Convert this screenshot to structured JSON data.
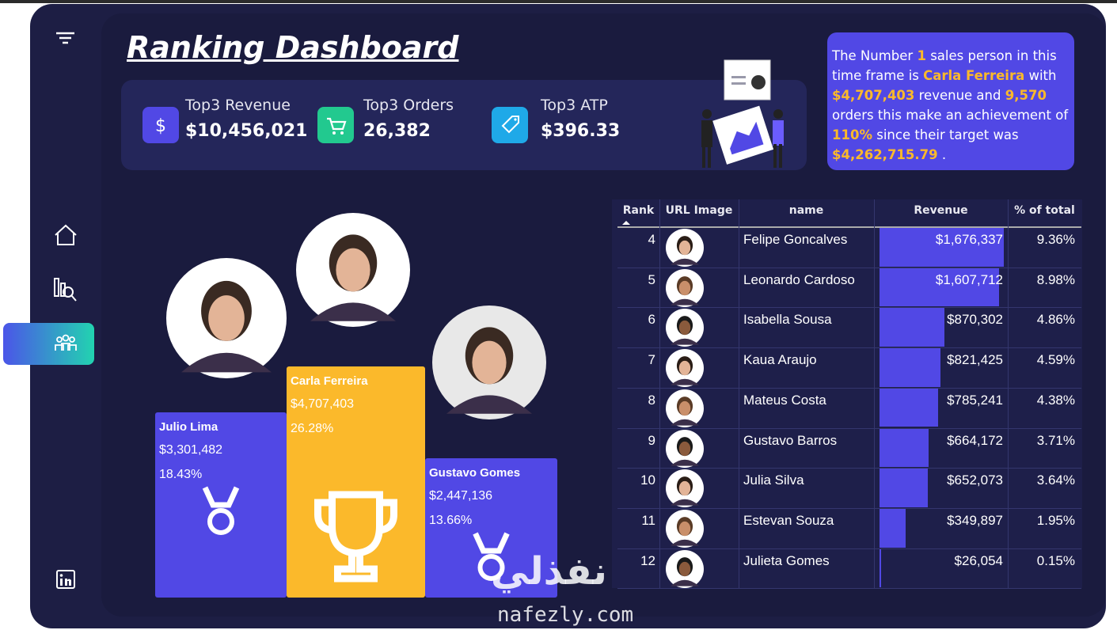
{
  "header": {
    "title": "Ranking Dashboard"
  },
  "kpis": [
    {
      "label": "Top3 Revenue",
      "value": "$10,456,021"
    },
    {
      "label": "Top3 Orders",
      "value": "26,382"
    },
    {
      "label": "Top3 ATP",
      "value": "$396.33"
    }
  ],
  "summary": [
    "The Number ",
    "1",
    " sales person in this time frame  is ",
    "Carla Ferreira",
    " with ",
    "$4,707,403",
    " revenue and ",
    "9,570",
    " orders this make an achievement of ",
    "110%",
    " since their target was ",
    "$4,262,715.79",
    " ."
  ],
  "podium": [
    {
      "name": "Julio Lima",
      "revenue": "$3,301,482",
      "share": "18.43%"
    },
    {
      "name": "Carla Ferreira",
      "revenue": "$4,707,403",
      "share": "26.28%"
    },
    {
      "name": "Gustavo Gomes",
      "revenue": "$2,447,136",
      "share": "13.66%"
    }
  ],
  "table": {
    "columns": [
      "Rank",
      "URL Image",
      "name",
      "Revenue",
      "% of total"
    ],
    "rows": [
      {
        "rank": 4,
        "name": "Felipe Goncalves",
        "revenue": {
          "value": 1676337,
          "label": "$1,676,337"
        },
        "share": "9.36%"
      },
      {
        "rank": 5,
        "name": "Leonardo Cardoso",
        "revenue": {
          "value": 1607712,
          "label": "$1,607,712"
        },
        "share": "8.98%"
      },
      {
        "rank": 6,
        "name": "Isabella Sousa",
        "revenue": {
          "value": 870302,
          "label": "$870,302"
        },
        "share": "4.86%"
      },
      {
        "rank": 7,
        "name": "Kaua Araujo",
        "revenue": {
          "value": 821425,
          "label": "$821,425"
        },
        "share": "4.59%"
      },
      {
        "rank": 8,
        "name": "Mateus Costa",
        "revenue": {
          "value": 785241,
          "label": "$785,241"
        },
        "share": "4.38%"
      },
      {
        "rank": 9,
        "name": "Gustavo Barros",
        "revenue": {
          "value": 664172,
          "label": "$664,172"
        },
        "share": "3.71%"
      },
      {
        "rank": 10,
        "name": "Julia Silva",
        "revenue": {
          "value": 652073,
          "label": "$652,073"
        },
        "share": "3.64%"
      },
      {
        "rank": 11,
        "name": "Estevan Souza",
        "revenue": {
          "value": 349897,
          "label": "$349,897"
        },
        "share": "1.95%"
      },
      {
        "rank": 12,
        "name": "Julieta Gomes",
        "revenue": {
          "value": 26054,
          "label": "$26,054"
        },
        "share": "0.15%"
      }
    ]
  },
  "watermark": {
    "arabic": "نفذلي",
    "latin": "nafezly.com"
  }
}
